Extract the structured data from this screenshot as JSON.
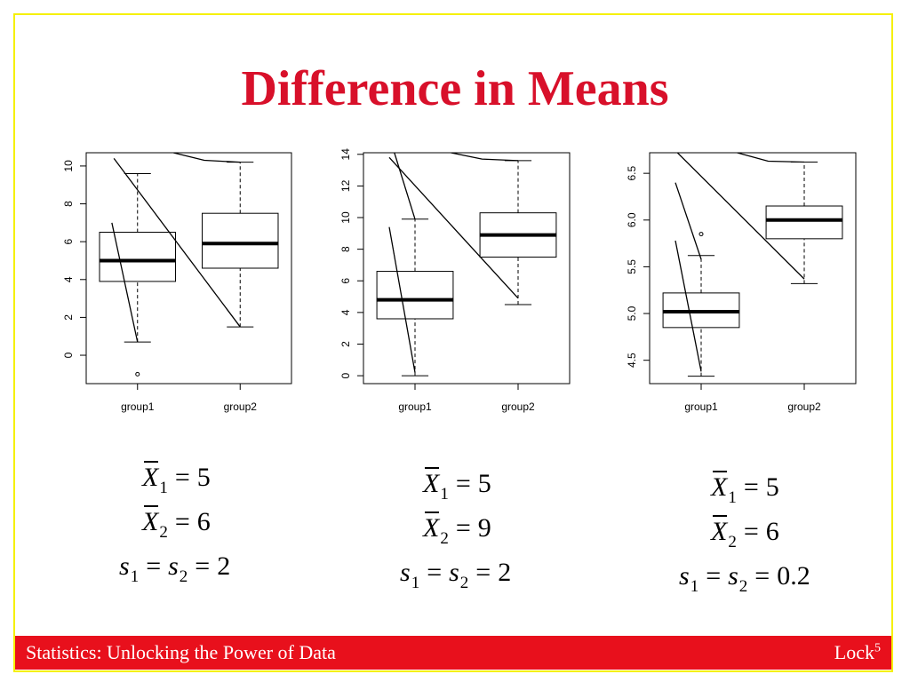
{
  "slide": {
    "title": "Difference in Means",
    "colors": {
      "title": "#d8102a",
      "footer_bg": "#e8101c",
      "frame": "#f5f000"
    }
  },
  "footer": {
    "left_text": "Statistics: Unlocking the Power of Data",
    "right_text": "Lock",
    "right_sup": "5"
  },
  "chart_data": [
    {
      "type": "box",
      "categories": [
        "group1",
        "group2"
      ],
      "yticks": [
        0,
        2,
        4,
        6,
        8,
        10
      ],
      "ylim": [
        -1.5,
        10.7
      ],
      "boxes": [
        {
          "whisker_low": 0.7,
          "q1": 3.9,
          "median": 5.0,
          "q3": 6.5,
          "whisker_high": 9.6,
          "outliers": [
            -1.0
          ]
        },
        {
          "whisker_low": 1.5,
          "q1": 4.6,
          "median": 5.9,
          "q3": 7.5,
          "whisker_high": 10.2,
          "outliers": []
        }
      ],
      "overlay_lines": [
        [
          [
            1.35,
            10.7
          ],
          [
            1.65,
            10.3
          ],
          [
            2.0,
            10.2
          ]
        ],
        [
          [
            0.77,
            10.4
          ],
          [
            2.0,
            1.5
          ]
        ],
        [
          [
            0.75,
            7.0
          ],
          [
            1.0,
            0.7
          ]
        ]
      ]
    },
    {
      "type": "box",
      "categories": [
        "group1",
        "group2"
      ],
      "yticks": [
        0,
        2,
        4,
        6,
        8,
        10,
        12,
        14
      ],
      "ylim": [
        -0.5,
        14.1
      ],
      "boxes": [
        {
          "whisker_low": 0.0,
          "q1": 3.6,
          "median": 4.8,
          "q3": 6.6,
          "whisker_high": 9.9,
          "outliers": []
        },
        {
          "whisker_low": 4.5,
          "q1": 7.5,
          "median": 8.9,
          "q3": 10.3,
          "whisker_high": 13.6,
          "outliers": []
        }
      ],
      "overlay_lines": [
        [
          [
            1.35,
            14.1
          ],
          [
            1.65,
            13.7
          ],
          [
            2.0,
            13.6
          ]
        ],
        [
          [
            0.75,
            13.8
          ],
          [
            2.0,
            4.9
          ]
        ],
        [
          [
            0.8,
            14.1
          ],
          [
            1.0,
            9.9
          ]
        ],
        [
          [
            0.75,
            9.4
          ],
          [
            1.0,
            0.2
          ]
        ]
      ]
    },
    {
      "type": "box",
      "categories": [
        "group1",
        "group2"
      ],
      "yticks": [
        4.5,
        5.0,
        5.5,
        6.0,
        6.5
      ],
      "ylim": [
        4.25,
        6.72
      ],
      "boxes": [
        {
          "whisker_low": 4.33,
          "q1": 4.85,
          "median": 5.02,
          "q3": 5.22,
          "whisker_high": 5.62,
          "outliers": [
            5.85
          ]
        },
        {
          "whisker_low": 5.32,
          "q1": 5.8,
          "median": 6.0,
          "q3": 6.15,
          "whisker_high": 6.62,
          "outliers": []
        }
      ],
      "overlay_lines": [
        [
          [
            1.35,
            6.72
          ],
          [
            1.65,
            6.63
          ],
          [
            2.0,
            6.62
          ]
        ],
        [
          [
            0.77,
            6.72
          ],
          [
            2.0,
            5.37
          ]
        ],
        [
          [
            0.75,
            6.4
          ],
          [
            1.0,
            5.58
          ]
        ],
        [
          [
            0.75,
            5.78
          ],
          [
            1.0,
            4.38
          ]
        ]
      ]
    }
  ],
  "stats": [
    {
      "x1_label": "X",
      "x1_sub": "1",
      "x1_value": "5",
      "x2_label": "X",
      "x2_sub": "2",
      "x2_value": "6",
      "s1_label": "s",
      "s1_sub": "1",
      "s2_label": "s",
      "s2_sub": "2",
      "s_value": "2"
    },
    {
      "x1_label": "X",
      "x1_sub": "1",
      "x1_value": "5",
      "x2_label": "X",
      "x2_sub": "2",
      "x2_value": "9",
      "s1_label": "s",
      "s1_sub": "1",
      "s2_label": "s",
      "s2_sub": "2",
      "s_value": "2"
    },
    {
      "x1_label": "X",
      "x1_sub": "1",
      "x1_value": "5",
      "x2_label": "X",
      "x2_sub": "2",
      "x2_value": "6",
      "s1_label": "s",
      "s1_sub": "1",
      "s2_label": "s",
      "s2_sub": "2",
      "s_value": "0.2"
    }
  ]
}
